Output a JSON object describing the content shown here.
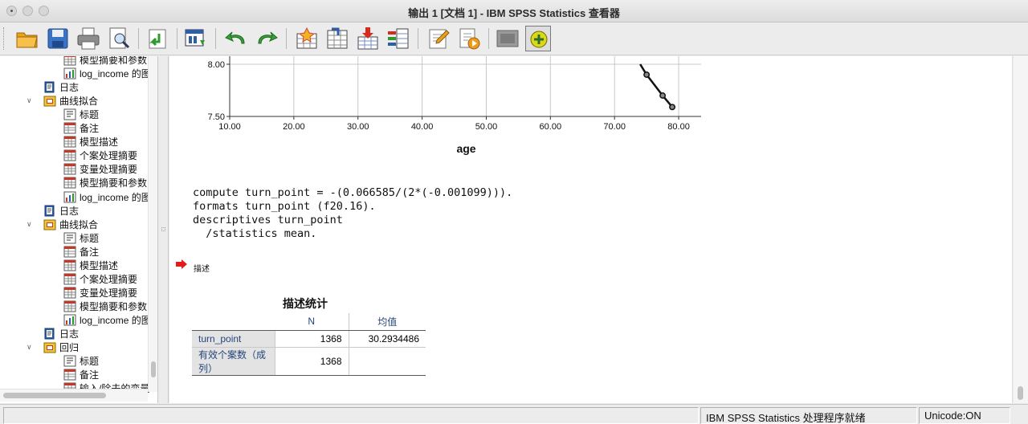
{
  "window": {
    "title": "输出 1 [文档 1] - IBM SPSS Statistics 查看器"
  },
  "toolbar": {
    "buttons": [
      "open-icon",
      "save-icon",
      "print-icon",
      "print-preview-icon",
      "export-icon",
      "recall-dialog-icon",
      "undo-icon",
      "redo-icon",
      "goto-case-icon",
      "goto-variable-icon",
      "insert-cases-icon",
      "variables-icon",
      "edit-output-icon",
      "script-icon",
      "hide-icon",
      "designate-window-icon"
    ]
  },
  "nav": {
    "items": [
      {
        "label": "模型摘要和参数",
        "type": "table",
        "level": 2
      },
      {
        "label": "log_income 的图表",
        "type": "chart",
        "level": 2
      },
      {
        "label": "日志",
        "type": "log",
        "level": 1
      },
      {
        "label": "曲线拟合",
        "type": "folder",
        "level": 1
      },
      {
        "label": "标题",
        "type": "title",
        "level": 2
      },
      {
        "label": "备注",
        "type": "notes",
        "level": 2
      },
      {
        "label": "模型描述",
        "type": "table",
        "level": 2
      },
      {
        "label": "个案处理摘要",
        "type": "table",
        "level": 2
      },
      {
        "label": "变量处理摘要",
        "type": "table",
        "level": 2
      },
      {
        "label": "模型摘要和参数",
        "type": "table",
        "level": 2
      },
      {
        "label": "log_income 的图表",
        "type": "chart",
        "level": 2
      },
      {
        "label": "日志",
        "type": "log",
        "level": 1
      },
      {
        "label": "曲线拟合",
        "type": "folder",
        "level": 1
      },
      {
        "label": "标题",
        "type": "title",
        "level": 2
      },
      {
        "label": "备注",
        "type": "notes",
        "level": 2
      },
      {
        "label": "模型描述",
        "type": "table",
        "level": 2
      },
      {
        "label": "个案处理摘要",
        "type": "table",
        "level": 2
      },
      {
        "label": "变量处理摘要",
        "type": "table",
        "level": 2
      },
      {
        "label": "模型摘要和参数",
        "type": "table",
        "level": 2
      },
      {
        "label": "log_income 的图表",
        "type": "chart",
        "level": 2
      },
      {
        "label": "日志",
        "type": "log",
        "level": 1
      },
      {
        "label": "回归",
        "type": "folder",
        "level": 1
      },
      {
        "label": "标题",
        "type": "title",
        "level": 2
      },
      {
        "label": "备注",
        "type": "notes",
        "level": 2
      },
      {
        "label": "输入/除去的变量",
        "type": "table",
        "level": 2
      }
    ]
  },
  "chart_data": {
    "type": "line",
    "xlabel": "age",
    "ylabel": "",
    "x_ticks": [
      "10.00",
      "20.00",
      "30.00",
      "40.00",
      "50.00",
      "60.00",
      "70.00",
      "80.00"
    ],
    "y_ticks": [
      "8.00",
      "7.50"
    ],
    "xlim": [
      10,
      83.5
    ],
    "ylim": [
      7.5,
      8.0
    ],
    "grid": true,
    "series": [
      {
        "x": [
          74.0,
          75.0,
          77.5,
          79.0
        ],
        "y": [
          8.0,
          7.9,
          7.7,
          7.59
        ],
        "markers": true
      }
    ]
  },
  "syntax": {
    "lines": [
      "compute turn_point = -(0.066585/(2*(-0.001099))).",
      "formats turn_point (f20.16).",
      "descriptives turn_point",
      "  /statistics mean."
    ]
  },
  "log": {
    "title": "描述"
  },
  "table": {
    "title": "描述统计",
    "headers": [
      "N",
      "均值"
    ],
    "rows": [
      {
        "label": "turn_point",
        "n": "1368",
        "mean": "30.2934486"
      },
      {
        "label": "有效个案数（成列）",
        "n": "1368",
        "mean": ""
      }
    ]
  },
  "status": {
    "state": "IBM SPSS Statistics 处理程序就绪",
    "unicode": "Unicode:ON"
  }
}
